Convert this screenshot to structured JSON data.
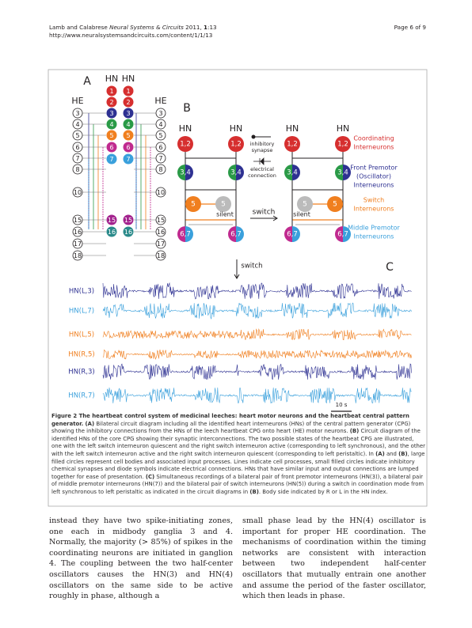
{
  "header": {
    "citation": [
      "Lamb and Calabrese ",
      "Neural Systems & Circuits",
      " 2011, ",
      "1",
      ":13"
    ],
    "url": "http://www.neuralsystemsandcircuits.com/content/1/1/13",
    "page": "Page 6 of 9"
  },
  "figure": {
    "panel_a": {
      "letter": "A",
      "hn_label": "HN",
      "he_label": "HE",
      "hn_cells": [
        {
          "label": "1",
          "color": "#d62f2f"
        },
        {
          "label": "2",
          "color": "#d62f2f"
        },
        {
          "label": "3",
          "color": "#2e3192"
        },
        {
          "label": "4",
          "color": "#2a9a47"
        },
        {
          "label": "5",
          "color": "#f07f1f"
        },
        {
          "label": "6",
          "color": "#c02a8f"
        },
        {
          "label": "7",
          "color": "#3aa0dc"
        },
        {
          "label": "15",
          "color": "#a3238e"
        },
        {
          "label": "16",
          "color": "#2a8a8a"
        }
      ],
      "ganglia": [
        "3",
        "4",
        "5",
        "6",
        "7",
        "8",
        "10",
        "15",
        "16",
        "17",
        "18"
      ]
    },
    "panel_b": {
      "letter": "B",
      "hn_label": "HN",
      "coordinating": "1,2",
      "premotor": "3,4",
      "switch_cell": "5",
      "middle": "6,7",
      "silent": "silent",
      "switch": "switch",
      "legend": {
        "inhibitory": [
          "inhibitory",
          "synapse"
        ],
        "electrical": [
          "electrical",
          "connection"
        ]
      },
      "classes": [
        {
          "lines": [
            "Coordinating",
            "Interneurons"
          ],
          "color": "#d62f2f"
        },
        {
          "lines": [
            "Front Premotor",
            "(Oscillator)",
            "Interneurons"
          ],
          "color": "#2e3192"
        },
        {
          "lines": [
            "Switch",
            "Interneurons"
          ],
          "color": "#f07f1f"
        },
        {
          "lines": [
            "Middle Premotor",
            "Interneurons"
          ],
          "color": "#3aa0dc"
        }
      ]
    },
    "panel_c": {
      "letter": "C",
      "switch": "switch",
      "scale": "10 s",
      "traces": [
        {
          "label": "HN(L,3)",
          "color": "#2e3192"
        },
        {
          "label": "HN(L,7)",
          "color": "#3aa0dc"
        },
        {
          "label": "HN(L,5)",
          "color": "#f07f1f"
        },
        {
          "label": "HN(R,5)",
          "color": "#f07f1f"
        },
        {
          "label": "HN(R,3)",
          "color": "#2e3192"
        },
        {
          "label": "HN(R,7)",
          "color": "#3aa0dc"
        }
      ]
    }
  },
  "caption": [
    {
      "text": "Figure 2 The heartbeat control system of medicinal leeches: heart motor neurons and the heartbeat central pattern generator.",
      "bold": true
    },
    {
      "text": " ",
      "bold": false
    },
    {
      "text": "(A)",
      "bold": true
    },
    {
      "text": " Bilateral circuit diagram including all the identified heart interneurons (HNs) of the central pattern generator (CPG) showing the inhibitory connections from the HNs of the leech heartbeat CPG onto heart (HE) motor neurons. ",
      "bold": false
    },
    {
      "text": "(B)",
      "bold": true
    },
    {
      "text": " Circuit diagram of the identified HNs of the core CPG showing their synaptic interconnections. The two possible states of the heartbeat CPG are illustrated, one with the left switch interneuron quiescent and the right switch interneuron active (corresponding to left synchronous), and the other with the left switch interneuron active and the right switch interneuron quiescent (corresponding to left peristaltic). In ",
      "bold": false
    },
    {
      "text": "(A)",
      "bold": true
    },
    {
      "text": " and ",
      "bold": false
    },
    {
      "text": "(B)",
      "bold": true
    },
    {
      "text": ", large filled circles represent cell bodies and associated input processes. Lines indicate cell processes, small filled circles indicate inhibitory chemical synapses and diode symbols indicate electrical connections. HNs that have similar input and output connections are lumped together for ease of presentation. ",
      "bold": false
    },
    {
      "text": "(C)",
      "bold": true
    },
    {
      "text": " Simultaneous recordings of a bilateral pair of front premotor interneurons (HN(3)), a bilateral pair of middle premotor interneurons (HN(7)) and the bilateral pair of switch interneurons (HN(5)) during a switch in coordination mode from left synchronous to left peristaltic as indicated in the circuit diagrams in ",
      "bold": false
    },
    {
      "text": "(B)",
      "bold": true
    },
    {
      "text": ". Body side indicated by R or L in the HN index.",
      "bold": false
    }
  ],
  "body": {
    "left": "instead they have two spike-initiating zones, one each in midbody ganglia 3 and 4. Normally, the majority (> 85%) of spikes in the coordinating neurons are initiated in ganglion 4. The coupling between the two half-center oscillators causes the HN(3) and HN(4) oscillators on the same side to be active roughly in phase, although a",
    "right": "small phase lead by the HN(4) oscillator is important for proper HE coordination. The mechanisms of coordination within the timing networks are consistent with interaction between two independent half-center oscillators that mutually entrain one another and assume the period of the faster oscillator, which then leads in phase."
  }
}
